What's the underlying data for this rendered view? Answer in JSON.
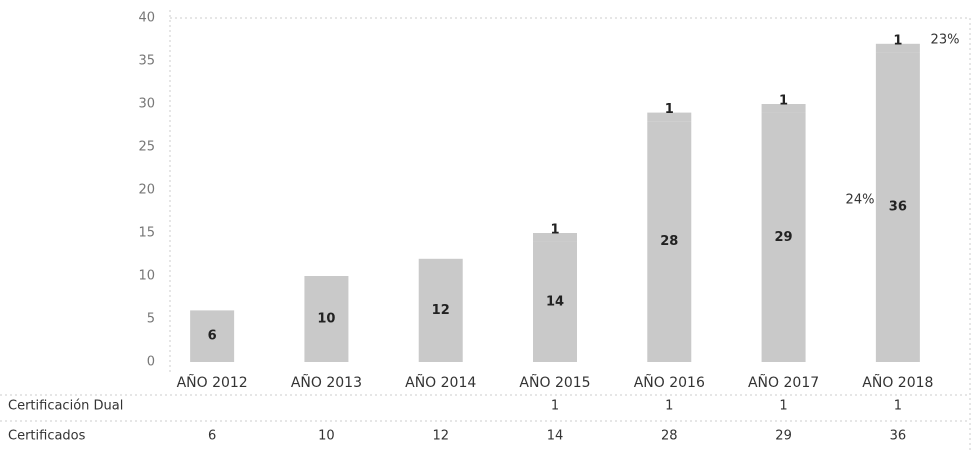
{
  "chart_data": {
    "type": "bar",
    "stacked": true,
    "categories": [
      "AÑO 2012",
      "AÑO 2013",
      "AÑO 2014",
      "AÑO 2015",
      "AÑO 2016",
      "AÑO 2017",
      "AÑO 2018"
    ],
    "series": [
      {
        "name": "Certificados",
        "color": "#c9c9c9",
        "values": [
          6,
          10,
          12,
          14,
          28,
          29,
          36
        ]
      },
      {
        "name": "Certificación Dual",
        "color": "#c9c9c9",
        "values": [
          null,
          null,
          null,
          1,
          1,
          1,
          1
        ]
      }
    ],
    "ylim": [
      0,
      40
    ],
    "yticks": [
      0,
      5,
      10,
      15,
      20,
      25,
      30,
      35,
      40
    ],
    "annotations": [
      "24%",
      "23%"
    ]
  }
}
